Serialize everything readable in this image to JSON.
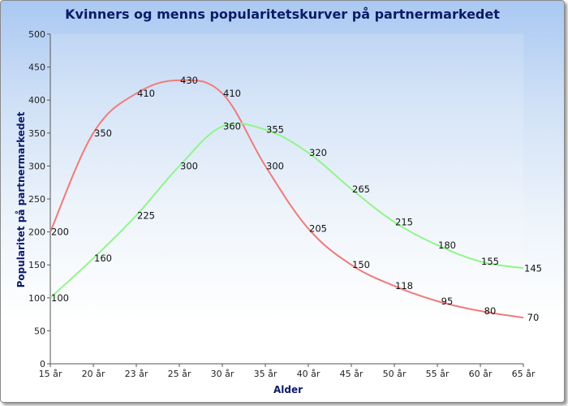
{
  "chart_data": {
    "type": "line",
    "title": "Kvinners og menns popularitetskurver på partnermarkedet",
    "xlabel": "Alder",
    "ylabel": "Popularitet på partnermarkedet",
    "categories": [
      "15 år",
      "20 år",
      "23 år",
      "25 år",
      "30 år",
      "35 år",
      "40 år",
      "45 år",
      "50 år",
      "55 år",
      "60 år",
      "65 år"
    ],
    "yticks": [
      "0",
      "50",
      "100",
      "150",
      "200",
      "250",
      "300",
      "350",
      "400",
      "450",
      "500"
    ],
    "ylim": [
      0,
      500
    ],
    "grid": false,
    "legend": "none",
    "series": [
      {
        "values": [
          200,
          350,
          410,
          430,
          410,
          300,
          205,
          150,
          118,
          95,
          80,
          70
        ],
        "color": "#f07b7b"
      },
      {
        "values": [
          100,
          160,
          225,
          300,
          360,
          355,
          320,
          265,
          215,
          180,
          155,
          145
        ],
        "color": "#90f58a"
      }
    ]
  }
}
